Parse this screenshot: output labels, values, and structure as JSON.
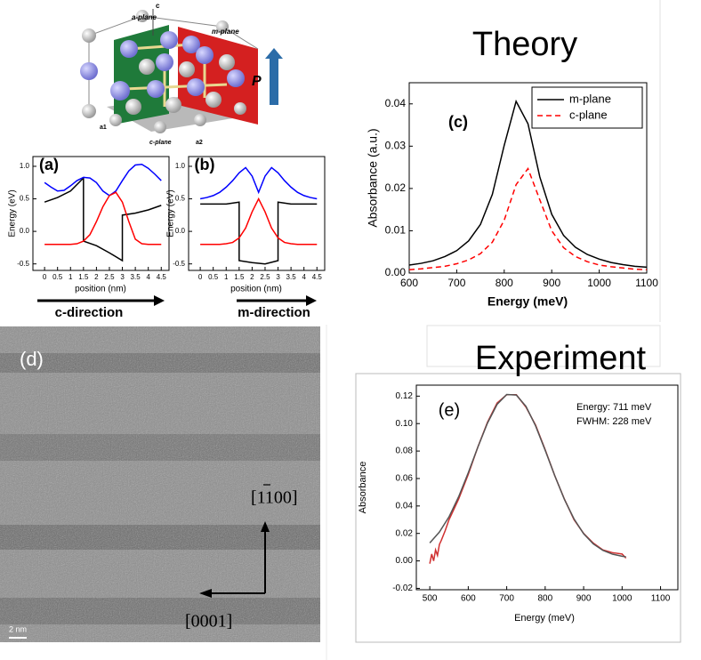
{
  "crystal": {
    "labels": [
      "a-plane",
      "c",
      "m-plane",
      "P",
      "a1",
      "c-plane",
      "a2"
    ]
  },
  "tem": {
    "label": "(d)",
    "direction_1": "[1100]",
    "direction_2": "[0001]",
    "scale": "2 nm"
  },
  "chart_data": [
    {
      "type": "line",
      "label": "(a)",
      "xlabel": "position (nm)",
      "ylabel": "Energy (eV)",
      "annotation": "c-direction",
      "xlim": [
        -0.45,
        4.8
      ],
      "ylim": [
        -0.6,
        1.15
      ],
      "xticks": [
        0,
        0.5,
        1,
        1.5,
        2,
        2.5,
        3,
        3.5,
        4,
        4.5
      ],
      "yticks": [
        {
          "value": -0.5,
          "label": "-0.5"
        },
        {
          "value": 0,
          "label": "0.0"
        },
        0.5,
        {
          "value": 1,
          "label": "1.0"
        }
      ],
      "series": [
        {
          "color": "#000000",
          "x": [
            0,
            0.5,
            1,
            1.5,
            1.5,
            2,
            2.5,
            3,
            3,
            3.5,
            4,
            4.5
          ],
          "values": [
            0.45,
            0.52,
            0.62,
            0.82,
            -0.15,
            -0.22,
            -0.33,
            -0.45,
            0.25,
            0.28,
            0.33,
            0.4
          ]
        },
        {
          "color": "#0000ff",
          "x": [
            0,
            0.25,
            0.5,
            0.75,
            1,
            1.25,
            1.5,
            1.75,
            2,
            2.25,
            2.5,
            2.75,
            3,
            3.25,
            3.5,
            3.75,
            4,
            4.25,
            4.5
          ],
          "values": [
            0.75,
            0.68,
            0.62,
            0.63,
            0.7,
            0.78,
            0.83,
            0.82,
            0.75,
            0.62,
            0.55,
            0.62,
            0.78,
            0.93,
            1.02,
            1.03,
            0.97,
            0.88,
            0.78
          ]
        },
        {
          "color": "#ff0000",
          "x": [
            0,
            0.25,
            0.5,
            0.75,
            1,
            1.25,
            1.5,
            1.75,
            2,
            2.25,
            2.5,
            2.75,
            3,
            3.25,
            3.5,
            3.75,
            4,
            4.25,
            4.5
          ],
          "values": [
            -0.2,
            -0.2,
            -0.2,
            -0.2,
            -0.2,
            -0.19,
            -0.15,
            -0.05,
            0.15,
            0.38,
            0.55,
            0.6,
            0.45,
            0.15,
            -0.12,
            -0.19,
            -0.2,
            -0.2,
            -0.2
          ]
        }
      ]
    },
    {
      "type": "line",
      "label": "(b)",
      "xlabel": "position (nm)",
      "ylabel": "Energy (eV)",
      "annotation": "m-direction",
      "xlim": [
        -0.45,
        4.8
      ],
      "ylim": [
        -0.6,
        1.15
      ],
      "xticks": [
        0,
        0.5,
        1,
        1.5,
        2,
        2.5,
        3,
        3.5,
        4,
        4.5
      ],
      "yticks": [
        {
          "value": -0.5,
          "label": "-0.5"
        },
        {
          "value": 0,
          "label": "0.0"
        },
        0.5,
        {
          "value": 1,
          "label": "1.0"
        }
      ],
      "series": [
        {
          "color": "#000000",
          "x": [
            0,
            0.5,
            1,
            1.5,
            1.5,
            2,
            2.5,
            3,
            3,
            3.5,
            4,
            4.5
          ],
          "values": [
            0.42,
            0.42,
            0.42,
            0.45,
            -0.45,
            -0.48,
            -0.5,
            -0.45,
            0.45,
            0.42,
            0.42,
            0.42
          ]
        },
        {
          "color": "#0000ff",
          "x": [
            0,
            0.25,
            0.5,
            0.75,
            1,
            1.25,
            1.5,
            1.75,
            2,
            2.25,
            2.5,
            2.75,
            3,
            3.25,
            3.5,
            3.75,
            4,
            4.25,
            4.5
          ],
          "values": [
            0.5,
            0.52,
            0.55,
            0.6,
            0.68,
            0.78,
            0.9,
            0.98,
            0.85,
            0.6,
            0.85,
            0.98,
            0.9,
            0.78,
            0.68,
            0.6,
            0.55,
            0.52,
            0.5
          ]
        },
        {
          "color": "#ff0000",
          "x": [
            0,
            0.25,
            0.5,
            0.75,
            1,
            1.25,
            1.5,
            1.75,
            2,
            2.25,
            2.5,
            2.75,
            3,
            3.25,
            3.5,
            3.75,
            4,
            4.25,
            4.5
          ],
          "values": [
            -0.2,
            -0.2,
            -0.2,
            -0.2,
            -0.19,
            -0.17,
            -0.1,
            0.05,
            0.3,
            0.5,
            0.3,
            0.05,
            -0.1,
            -0.17,
            -0.19,
            -0.2,
            -0.2,
            -0.2,
            -0.2
          ]
        }
      ]
    },
    {
      "type": "line",
      "title": "Theory",
      "label": "(c)",
      "xlabel": "Energy (meV)",
      "ylabel": "Absorbance (a.u.)",
      "legend": "upper right",
      "xlim": [
        600,
        1100
      ],
      "ylim": [
        0,
        0.045
      ],
      "xticks": [
        600,
        700,
        800,
        900,
        1000,
        1100
      ],
      "yticks": [
        {
          "value": 0,
          "label": "0.00"
        },
        0.01,
        0.02,
        0.03,
        0.04
      ],
      "series": [
        {
          "name": "m-plane",
          "color": "#000000",
          "linestyle": "solid",
          "x": [
            600,
            625,
            650,
            675,
            700,
            725,
            750,
            775,
            800,
            825,
            850,
            875,
            900,
            925,
            950,
            975,
            1000,
            1025,
            1050,
            1075,
            1100
          ],
          "values": [
            0.0019,
            0.0023,
            0.0029,
            0.0039,
            0.0053,
            0.0076,
            0.0115,
            0.0186,
            0.0302,
            0.0406,
            0.0353,
            0.0227,
            0.0139,
            0.0089,
            0.0061,
            0.0044,
            0.0033,
            0.0025,
            0.002,
            0.0016,
            0.0014
          ]
        },
        {
          "name": "c-plane",
          "color": "#ff0000",
          "linestyle": "dashed",
          "x": [
            600,
            625,
            650,
            675,
            700,
            725,
            750,
            775,
            800,
            825,
            850,
            875,
            900,
            925,
            950,
            975,
            1000,
            1025,
            1050,
            1075,
            1100
          ],
          "values": [
            0.0008,
            0.001,
            0.0013,
            0.0016,
            0.0022,
            0.0031,
            0.0046,
            0.0073,
            0.0125,
            0.0209,
            0.0247,
            0.0173,
            0.01,
            0.006,
            0.0039,
            0.0027,
            0.0019,
            0.0015,
            0.0012,
            0.0009,
            0.0008
          ]
        }
      ]
    },
    {
      "type": "line",
      "title": "Experiment",
      "label": "(e)",
      "xlabel": "Energy (meV)",
      "ylabel": "Absorbance",
      "annotations": [
        "Energy: 711 meV",
        "FWHM: 228 meV"
      ],
      "xlim": [
        465,
        1145
      ],
      "ylim": [
        -0.021,
        0.128
      ],
      "xticks": [
        500,
        600,
        700,
        800,
        900,
        1000,
        1100
      ],
      "yticks": [
        -0.02,
        {
          "value": 0,
          "label": "0.00"
        },
        0.02,
        0.04,
        0.06,
        0.08,
        {
          "value": 0.1,
          "label": "0.10"
        },
        0.12
      ],
      "series": [
        {
          "color": "#d03030",
          "linestyle": "solid",
          "x": [
            500,
            505,
            510,
            515,
            520,
            525,
            530,
            540,
            550,
            575,
            600,
            625,
            650,
            675,
            700,
            725,
            750,
            775,
            800,
            825,
            850,
            875,
            900,
            925,
            950,
            975,
            1000,
            1010
          ],
          "values": [
            -0.002,
            0.005,
            0,
            0.008,
            0.004,
            0.012,
            0.015,
            0.022,
            0.03,
            0.045,
            0.063,
            0.083,
            0.101,
            0.115,
            0.121,
            0.121,
            0.112,
            0.099,
            0.081,
            0.062,
            0.045,
            0.03,
            0.02,
            0.013,
            0.008,
            0.006,
            0.005,
            0.002
          ]
        },
        {
          "color": "#555555",
          "linestyle": "solid",
          "x": [
            500,
            525,
            550,
            575,
            600,
            625,
            650,
            675,
            700,
            725,
            750,
            775,
            800,
            825,
            850,
            875,
            900,
            925,
            950,
            975,
            1000,
            1010
          ],
          "values": [
            0.0131,
            0.021,
            0.0321,
            0.0467,
            0.0642,
            0.0829,
            0.1004,
            0.114,
            0.1212,
            0.1208,
            0.1126,
            0.0984,
            0.0806,
            0.062,
            0.0448,
            0.0306,
            0.0198,
            0.0124,
            0.0077,
            0.0049,
            0.0034,
            0.003
          ]
        }
      ]
    }
  ]
}
